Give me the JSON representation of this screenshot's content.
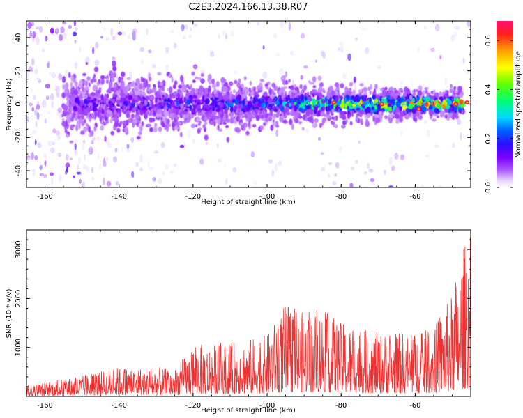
{
  "figure": {
    "title": "C2E3.2024.166.13.38.R07"
  },
  "chart_data": [
    {
      "type": "heatmap",
      "title": "C2E3.2024.166.13.38.R07",
      "xlabel": "Height of straight line (km)",
      "ylabel": "Frequency (Hz)",
      "xlim": [
        -165,
        -45
      ],
      "ylim": [
        -50,
        50
      ],
      "x_ticks": [
        -160,
        -140,
        -120,
        -100,
        -80,
        -60
      ],
      "y_ticks": [
        -40,
        -20,
        0,
        20,
        40
      ],
      "colorbar": {
        "label": "Normalized spectral amplitude",
        "range": [
          0.0,
          0.68
        ],
        "ticks": [
          0.0,
          0.2,
          0.4,
          0.6
        ],
        "colormap": [
          "#ffffff",
          "#e6d8ff",
          "#b060ff",
          "#7a00ff",
          "#2a10ff",
          "#0060ff",
          "#00d8ff",
          "#00ff70",
          "#60ff00",
          "#ffff00",
          "#ffa000",
          "#ff2020",
          "#ff1070"
        ]
      },
      "description_of_pattern": {
        "band_center_hz": 0,
        "band_half_width_hz_at_x": [
          [
            -150,
            12
          ],
          [
            -100,
            9
          ],
          [
            -50,
            6
          ]
        ],
        "peak_amplitude_at_x": [
          [
            -150,
            0.2
          ],
          [
            -100,
            0.3
          ],
          [
            -80,
            0.5
          ],
          [
            -60,
            0.62
          ],
          [
            -47,
            0.65
          ]
        ]
      }
    },
    {
      "type": "line",
      "xlabel": "Height of straight line (km)",
      "ylabel": "SNR (10 * v/v)",
      "xlim": [
        -165,
        -45
      ],
      "ylim": [
        0,
        3400
      ],
      "x_ticks": [
        -160,
        -140,
        -120,
        -100,
        -80,
        -60
      ],
      "y_ticks": [
        1000,
        2000,
        3000
      ],
      "series": [
        {
          "color": "#ee3333",
          "envelope_x": [
            -165,
            -150,
            -140,
            -130,
            -125,
            -120,
            -110,
            -100,
            -95,
            -90,
            -85,
            -80,
            -70,
            -60,
            -55,
            -50,
            -48,
            -46
          ],
          "envelope_y": [
            230,
            420,
            600,
            600,
            550,
            1050,
            1100,
            1250,
            1900,
            1700,
            1800,
            1500,
            1300,
            1300,
            1400,
            2100,
            2800,
            3300
          ]
        }
      ]
    }
  ]
}
